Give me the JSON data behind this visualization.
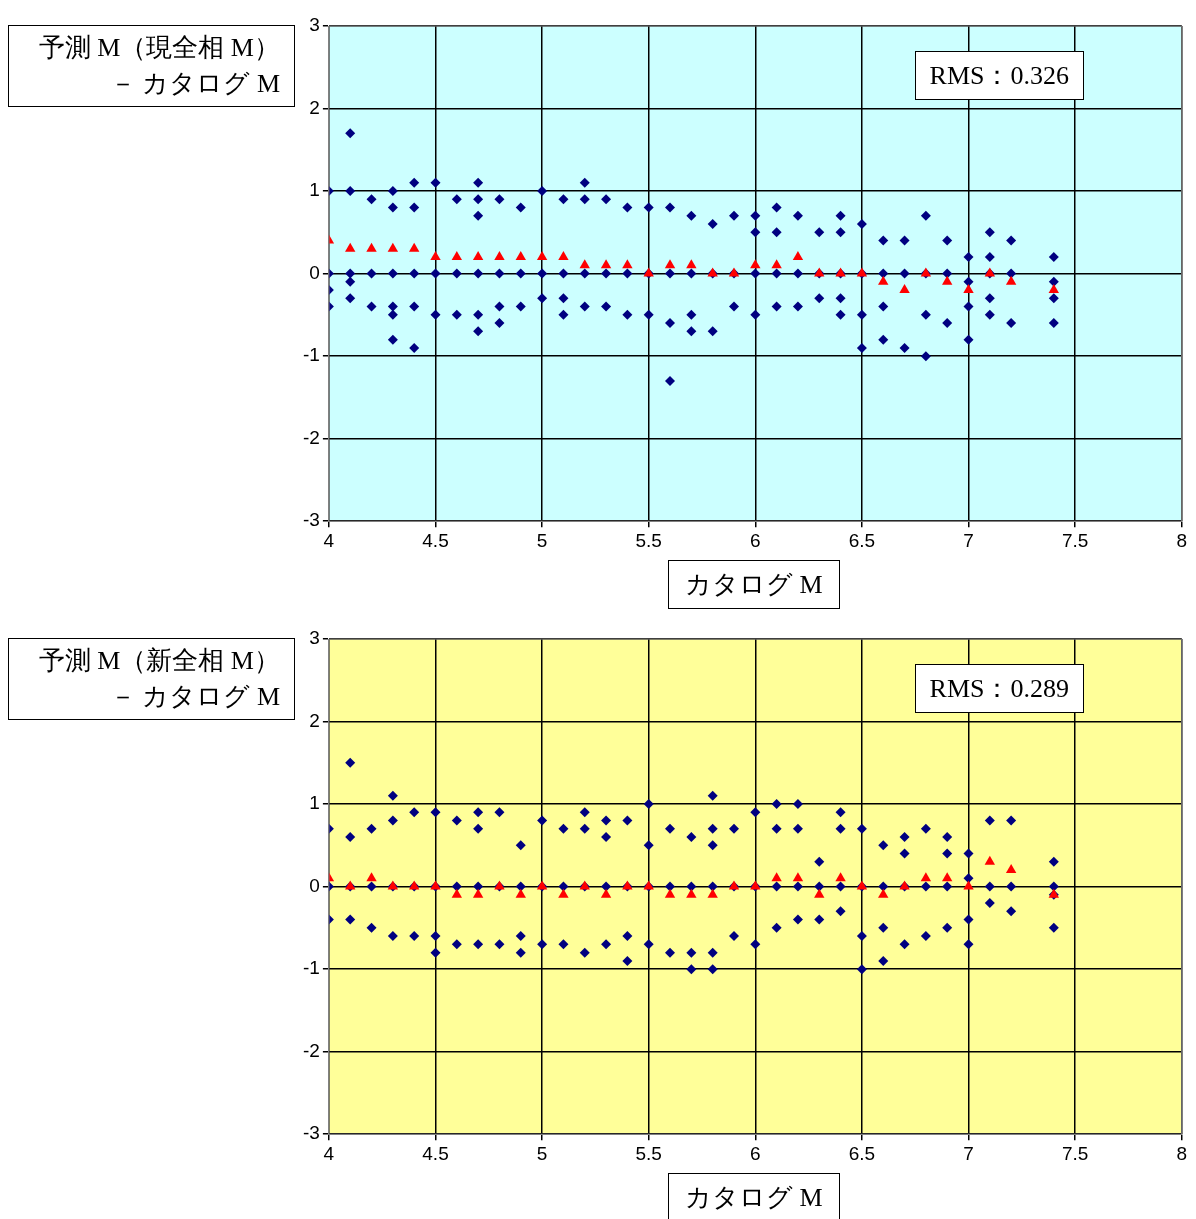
{
  "chart_data": [
    {
      "type": "scatter",
      "xlabel": "カタログ M",
      "ylabel": "予測 M（現全相 M）－ カタログ M",
      "annotations": [
        "RMS：0.326"
      ],
      "xlim": [
        4,
        8
      ],
      "xticks": [
        4,
        4.5,
        5,
        5.5,
        6,
        6.5,
        7,
        7.5,
        8
      ],
      "ylim": [
        -3,
        3
      ],
      "yticks": [
        -3,
        -2,
        -1,
        0,
        1,
        2,
        3
      ],
      "grid": true,
      "legend": false,
      "series": [
        {
          "color": "#000080",
          "marker": "diamond",
          "x": [
            4,
            4,
            4,
            4,
            4.1,
            4.1,
            4.1,
            4.1,
            4.1,
            4.2,
            4.2,
            4.2,
            4.3,
            4.3,
            4.3,
            4.3,
            4.3,
            4.3,
            4.4,
            4.4,
            4.4,
            4.4,
            4.4,
            4.5,
            4.5,
            4.5,
            4.6,
            4.6,
            4.6,
            4.7,
            4.7,
            4.7,
            4.7,
            4.7,
            4.7,
            4.8,
            4.8,
            4.8,
            4.8,
            4.9,
            4.9,
            4.9,
            5,
            5,
            5,
            5.1,
            5.1,
            5.1,
            5.1,
            5.2,
            5.2,
            5.2,
            5.2,
            5.3,
            5.3,
            5.3,
            5.4,
            5.4,
            5.4,
            5.5,
            5.5,
            5.5,
            5.6,
            5.6,
            5.6,
            5.6,
            5.7,
            5.7,
            5.7,
            5.7,
            5.8,
            5.8,
            5.8,
            5.9,
            5.9,
            5.9,
            6,
            6,
            6,
            6,
            6.1,
            6.1,
            6.1,
            6.1,
            6.2,
            6.2,
            6.2,
            6.3,
            6.3,
            6.3,
            6.4,
            6.4,
            6.4,
            6.4,
            6.4,
            6.5,
            6.5,
            6.5,
            6.5,
            6.6,
            6.6,
            6.6,
            6.6,
            6.7,
            6.7,
            6.7,
            6.8,
            6.8,
            6.8,
            6.8,
            6.9,
            6.9,
            6.9,
            7,
            7,
            7,
            7,
            7.1,
            7.1,
            7.1,
            7.1,
            7.1,
            7.2,
            7.2,
            7.2,
            7.4,
            7.4,
            7.4,
            7.4
          ],
          "values": [
            1,
            0,
            -0.2,
            -0.4,
            1.7,
            1,
            0,
            -0.1,
            -0.3,
            0.9,
            0,
            -0.4,
            1,
            0.8,
            0,
            -0.4,
            -0.5,
            -0.8,
            1.1,
            0.8,
            0,
            -0.4,
            -0.9,
            1.1,
            0,
            -0.5,
            0.9,
            0,
            -0.5,
            1.1,
            0.9,
            0.7,
            0,
            -0.5,
            -0.7,
            0.9,
            0,
            -0.4,
            -0.6,
            0.8,
            0,
            -0.4,
            1,
            0,
            -0.3,
            0.9,
            0,
            -0.3,
            -0.5,
            1.1,
            0.9,
            0,
            -0.4,
            0.9,
            0,
            -0.4,
            0.8,
            0,
            -0.5,
            0.8,
            0,
            -0.5,
            0.8,
            0,
            -0.6,
            -1.3,
            0.7,
            0,
            -0.5,
            -0.7,
            0.6,
            0,
            -0.7,
            0.7,
            0,
            -0.4,
            0.7,
            0.5,
            0,
            -0.5,
            0.8,
            0.5,
            0,
            -0.4,
            0.7,
            0,
            -0.4,
            0.5,
            0,
            -0.3,
            0.7,
            0.5,
            0,
            -0.3,
            -0.5,
            0.6,
            0,
            -0.5,
            -0.9,
            0.4,
            0,
            -0.4,
            -0.8,
            0.4,
            0,
            -0.9,
            0.7,
            0,
            -0.5,
            -1,
            0.4,
            0,
            -0.6,
            0.2,
            -0.1,
            -0.4,
            -0.8,
            0.5,
            0.2,
            0,
            -0.3,
            -0.5,
            0.4,
            0,
            -0.6,
            0.2,
            -0.1,
            -0.3,
            -0.6
          ]
        },
        {
          "color": "#ff0000",
          "marker": "triangle",
          "x": [
            4,
            4.1,
            4.2,
            4.3,
            4.4,
            4.5,
            4.6,
            4.7,
            4.8,
            4.9,
            5,
            5.1,
            5.2,
            5.3,
            5.4,
            5.5,
            5.6,
            5.7,
            5.8,
            5.9,
            6,
            6.1,
            6.2,
            6.3,
            6.4,
            6.5,
            6.6,
            6.7,
            6.8,
            6.9,
            7,
            7.1,
            7.2,
            7.4
          ],
          "values": [
            0.4,
            0.3,
            0.3,
            0.3,
            0.3,
            0.2,
            0.2,
            0.2,
            0.2,
            0.2,
            0.2,
            0.2,
            0.1,
            0.1,
            0.1,
            0,
            0.1,
            0.1,
            0,
            0,
            0.1,
            0.1,
            0.2,
            0,
            0,
            0,
            -0.1,
            -0.2,
            0,
            -0.1,
            -0.2,
            0,
            -0.1,
            -0.2
          ]
        }
      ]
    },
    {
      "type": "scatter",
      "xlabel": "カタログ M",
      "ylabel": "予測 M（新全相 M）－ カタログ M",
      "annotations": [
        "RMS：0.289"
      ],
      "xlim": [
        4,
        8
      ],
      "xticks": [
        4,
        4.5,
        5,
        5.5,
        6,
        6.5,
        7,
        7.5,
        8
      ],
      "ylim": [
        -3,
        3
      ],
      "yticks": [
        -3,
        -2,
        -1,
        0,
        1,
        2,
        3
      ],
      "grid": true,
      "legend": false,
      "series": [
        {
          "color": "#000080",
          "marker": "diamond",
          "x": [
            4,
            4,
            4,
            4.1,
            4.1,
            4.1,
            4.1,
            4.2,
            4.2,
            4.2,
            4.3,
            4.3,
            4.3,
            4.3,
            4.4,
            4.4,
            4.4,
            4.5,
            4.5,
            4.5,
            4.5,
            4.6,
            4.6,
            4.6,
            4.7,
            4.7,
            4.7,
            4.7,
            4.8,
            4.8,
            4.8,
            4.9,
            4.9,
            4.9,
            4.9,
            5,
            5,
            5,
            5.1,
            5.1,
            5.1,
            5.2,
            5.2,
            5.2,
            5.2,
            5.3,
            5.3,
            5.3,
            5.3,
            5.4,
            5.4,
            5.4,
            5.4,
            5.5,
            5.5,
            5.5,
            5.5,
            5.6,
            5.6,
            5.6,
            5.7,
            5.7,
            5.7,
            5.7,
            5.8,
            5.8,
            5.8,
            5.8,
            5.8,
            5.8,
            5.9,
            5.9,
            5.9,
            6,
            6,
            6,
            6.1,
            6.1,
            6.1,
            6.1,
            6.2,
            6.2,
            6.2,
            6.2,
            6.3,
            6.3,
            6.3,
            6.4,
            6.4,
            6.4,
            6.4,
            6.5,
            6.5,
            6.5,
            6.5,
            6.6,
            6.6,
            6.6,
            6.6,
            6.7,
            6.7,
            6.7,
            6.7,
            6.8,
            6.8,
            6.8,
            6.9,
            6.9,
            6.9,
            6.9,
            7,
            7,
            7,
            7,
            7.1,
            7.1,
            7.1,
            7.2,
            7.2,
            7.2,
            7.4,
            7.4,
            7.4,
            7.4
          ],
          "values": [
            0.7,
            0,
            -0.4,
            1.5,
            0.6,
            0,
            -0.4,
            0.7,
            0,
            -0.5,
            1.1,
            0.8,
            0,
            -0.6,
            0.9,
            0,
            -0.6,
            0.9,
            0,
            -0.6,
            -0.8,
            0.8,
            0,
            -0.7,
            0.9,
            0.7,
            0,
            -0.7,
            0.9,
            0,
            -0.7,
            0.5,
            0,
            -0.6,
            -0.8,
            0.8,
            0,
            -0.7,
            0.7,
            0,
            -0.7,
            0.9,
            0.7,
            0,
            -0.8,
            0.8,
            0.6,
            0,
            -0.7,
            0.8,
            0,
            -0.6,
            -0.9,
            1,
            0.5,
            0,
            -0.7,
            0.7,
            0,
            -0.8,
            0.6,
            0,
            -0.8,
            -1,
            1.1,
            0.7,
            0.5,
            0,
            -0.8,
            -1,
            0.7,
            0,
            -0.6,
            0.9,
            0,
            -0.7,
            1,
            0.7,
            0,
            -0.5,
            1,
            0.7,
            0,
            -0.4,
            0.3,
            0,
            -0.4,
            0.9,
            0.7,
            0,
            -0.3,
            0.7,
            0,
            -0.6,
            -1,
            0.5,
            0,
            -0.5,
            -0.9,
            0.6,
            0.4,
            0,
            -0.7,
            0.7,
            0,
            -0.6,
            0.6,
            0.4,
            0,
            -0.5,
            0.4,
            0.1,
            -0.4,
            -0.7,
            0.8,
            0,
            -0.2,
            0.8,
            0,
            -0.3,
            0.3,
            0,
            -0.1,
            -0.5
          ]
        },
        {
          "color": "#ff0000",
          "marker": "triangle",
          "x": [
            4,
            4.1,
            4.2,
            4.3,
            4.4,
            4.5,
            4.6,
            4.7,
            4.8,
            4.9,
            5,
            5.1,
            5.2,
            5.3,
            5.4,
            5.5,
            5.6,
            5.7,
            5.8,
            5.9,
            6,
            6.1,
            6.2,
            6.3,
            6.4,
            6.5,
            6.6,
            6.7,
            6.8,
            6.9,
            7,
            7.1,
            7.2,
            7.4
          ],
          "values": [
            0.1,
            0,
            0.1,
            0,
            0,
            0,
            -0.1,
            -0.1,
            0,
            -0.1,
            0,
            -0.1,
            0,
            -0.1,
            0,
            0,
            -0.1,
            -0.1,
            -0.1,
            0,
            0,
            0.1,
            0.1,
            -0.1,
            0.1,
            0,
            -0.1,
            0,
            0.1,
            0.1,
            0,
            0.3,
            0.2,
            -0.1
          ]
        }
      ]
    }
  ]
}
